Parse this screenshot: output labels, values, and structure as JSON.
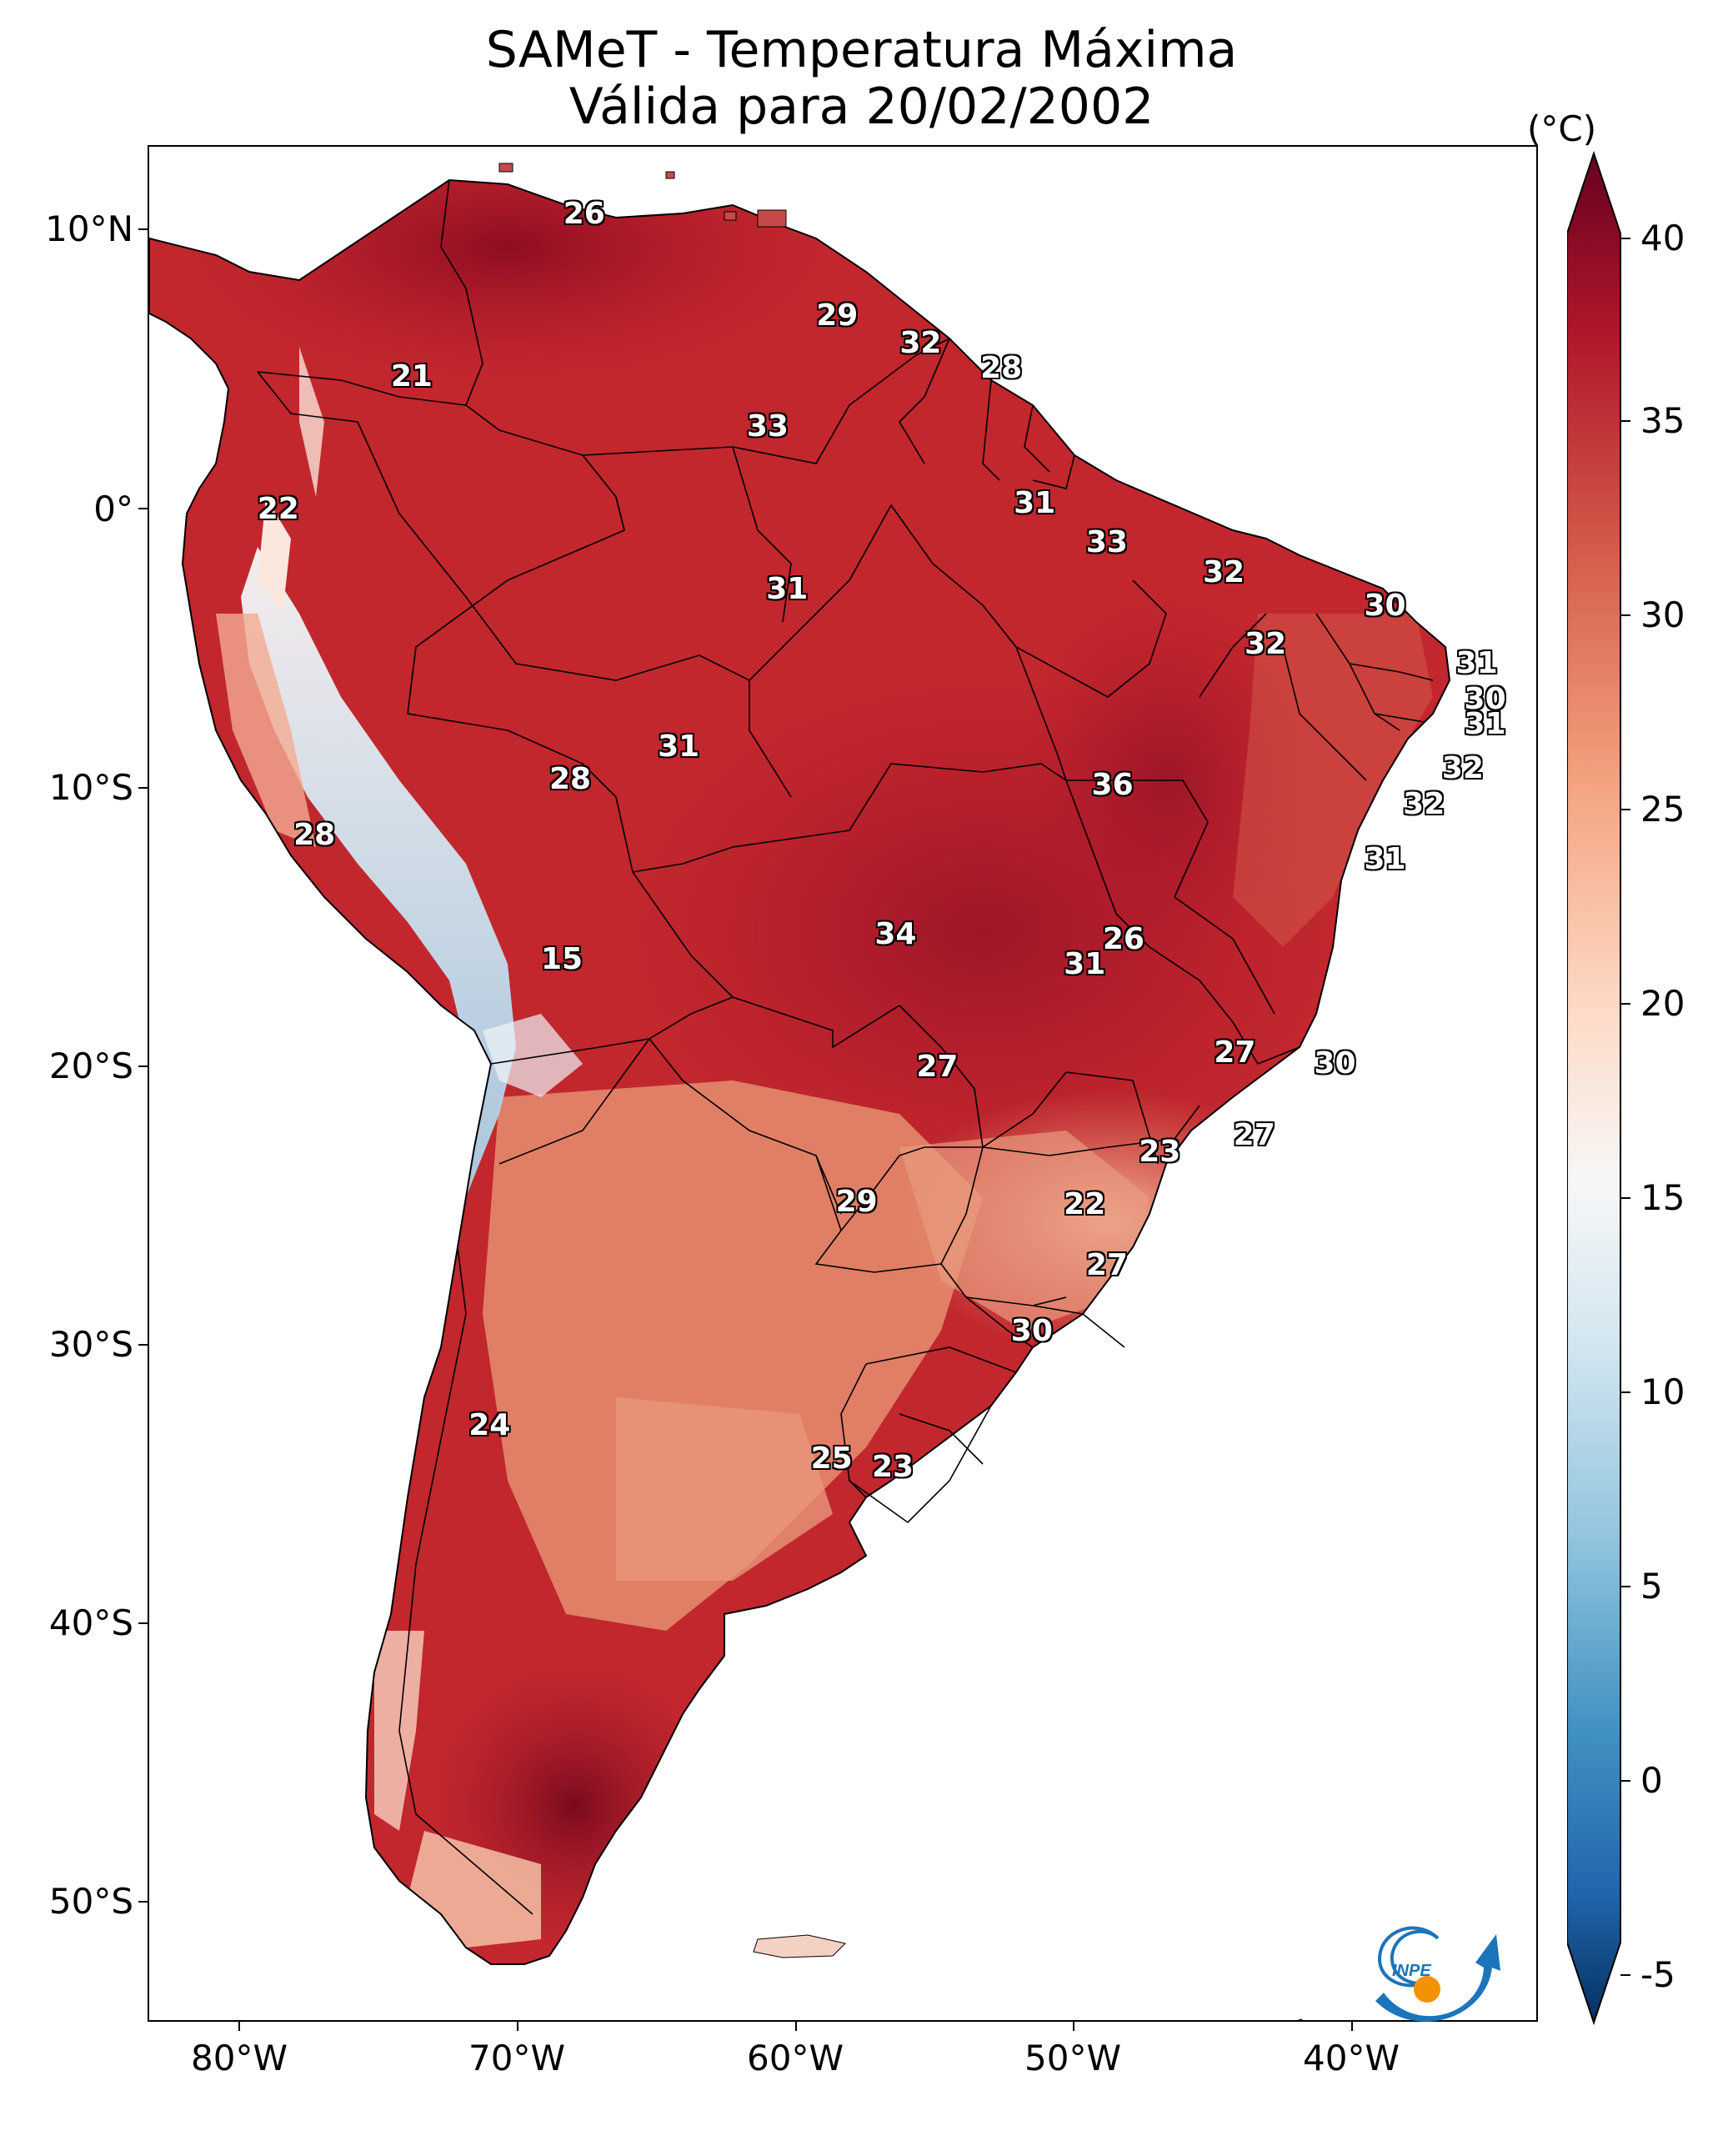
{
  "title": {
    "line1": "SAMeT - Temperatura Máxima",
    "line2": "Válida para 20/02/2002"
  },
  "axes": {
    "lat_labels": [
      "10°N",
      "0°",
      "10°S",
      "20°S",
      "30°S",
      "40°S",
      "50°S"
    ],
    "lon_labels": [
      "80°W",
      "70°W",
      "60°W",
      "50°W",
      "40°W"
    ],
    "lon_range": [
      -83,
      -33
    ],
    "lat_range": [
      -55,
      13
    ]
  },
  "colorbar": {
    "unit": "(°C)",
    "ticks": [
      "40",
      "35",
      "30",
      "25",
      "20",
      "15",
      "10",
      "5",
      "0",
      "-5"
    ],
    "min": -5,
    "max": 40,
    "colors": [
      "#053061",
      "#2166ac",
      "#4393c3",
      "#92c5de",
      "#d1e5f0",
      "#f7f7f7",
      "#fddbc7",
      "#f4a582",
      "#d6604d",
      "#b2182b",
      "#67001f"
    ]
  },
  "station_labels": [
    {
      "text": "26",
      "lon": -67.3,
      "lat": 10.5
    },
    {
      "text": "21",
      "lon": -73.5,
      "lat": 4.6
    },
    {
      "text": "22",
      "lon": -78.3,
      "lat": -0.2
    },
    {
      "text": "29",
      "lon": -58.2,
      "lat": 6.8
    },
    {
      "text": "32",
      "lon": -55.2,
      "lat": 5.8
    },
    {
      "text": "28",
      "lon": -52.3,
      "lat": 4.9
    },
    {
      "text": "33",
      "lon": -60.7,
      "lat": 2.8
    },
    {
      "text": "31",
      "lon": -51.1,
      "lat": 0.0
    },
    {
      "text": "33",
      "lon": -48.5,
      "lat": -1.4
    },
    {
      "text": "32",
      "lon": -44.3,
      "lat": -2.5
    },
    {
      "text": "31",
      "lon": -60.0,
      "lat": -3.1
    },
    {
      "text": "30",
      "lon": -38.5,
      "lat": -3.7
    },
    {
      "text": "32",
      "lon": -42.8,
      "lat": -5.1
    },
    {
      "text": "31",
      "lon": -35.2,
      "lat": -5.8
    },
    {
      "text": "30",
      "lon": -34.9,
      "lat": -7.1
    },
    {
      "text": "31",
      "lon": -34.9,
      "lat": -8.0
    },
    {
      "text": "31",
      "lon": -63.9,
      "lat": -8.8
    },
    {
      "text": "28",
      "lon": -67.8,
      "lat": -10.0
    },
    {
      "text": "36",
      "lon": -48.3,
      "lat": -10.2
    },
    {
      "text": "32",
      "lon": -35.7,
      "lat": -9.6
    },
    {
      "text": "32",
      "lon": -37.1,
      "lat": -10.9
    },
    {
      "text": "28",
      "lon": -77.0,
      "lat": -12.0
    },
    {
      "text": "31",
      "lon": -38.5,
      "lat": -12.9
    },
    {
      "text": "34",
      "lon": -56.1,
      "lat": -15.6
    },
    {
      "text": "26",
      "lon": -47.9,
      "lat": -15.8
    },
    {
      "text": "31",
      "lon": -49.3,
      "lat": -16.7
    },
    {
      "text": "15",
      "lon": -68.1,
      "lat": -16.5
    },
    {
      "text": "27",
      "lon": -54.6,
      "lat": -20.4
    },
    {
      "text": "27",
      "lon": -43.9,
      "lat": -19.9
    },
    {
      "text": "30",
      "lon": -40.3,
      "lat": -20.3
    },
    {
      "text": "27",
      "lon": -43.2,
      "lat": -22.9
    },
    {
      "text": "23",
      "lon": -46.6,
      "lat": -23.5
    },
    {
      "text": "29",
      "lon": -57.5,
      "lat": -25.3
    },
    {
      "text": "22",
      "lon": -49.3,
      "lat": -25.4
    },
    {
      "text": "27",
      "lon": -48.5,
      "lat": -27.6
    },
    {
      "text": "30",
      "lon": -51.2,
      "lat": -30.0
    },
    {
      "text": "24",
      "lon": -70.7,
      "lat": -33.4
    },
    {
      "text": "25",
      "lon": -58.4,
      "lat": -34.6
    },
    {
      "text": "23",
      "lon": -56.2,
      "lat": -34.9
    }
  ],
  "logo": {
    "text": "INPE"
  }
}
